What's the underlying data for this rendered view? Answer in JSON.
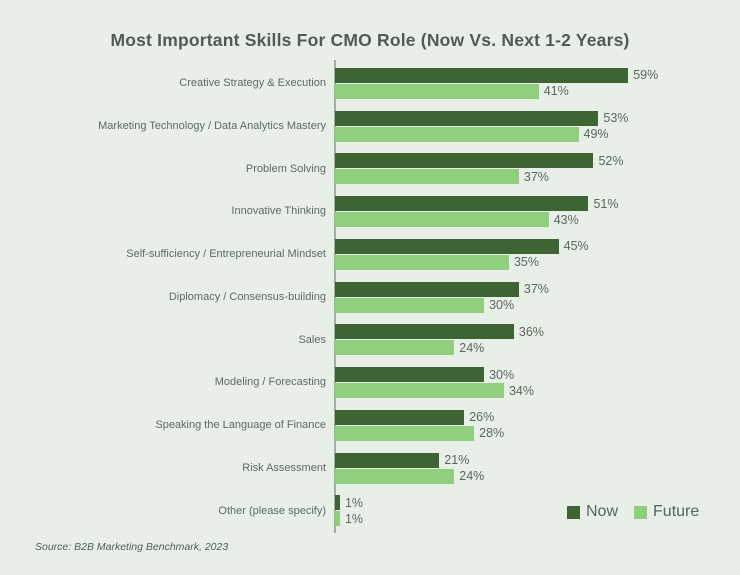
{
  "title": "Most Important Skills For CMO Role (Now Vs. Next 1-2 Years)",
  "source": "Source: B2B Marketing Benchmark, 2023",
  "legend": {
    "now_label": "Now",
    "future_label": "Future",
    "position": "bottom-right"
  },
  "colors": {
    "now": "#3d6432",
    "future": "#90cf7d",
    "background": "#e8efe6",
    "axis": "#a3ada7",
    "title_text": "#4e5b57",
    "label_text": "#5e6a66"
  },
  "chart_data": {
    "type": "bar",
    "orientation": "horizontal",
    "title": "Most Important Skills For CMO Role (Now Vs. Next 1-2 Years)",
    "categories": [
      "Creative Strategy & Execution",
      "Marketing Technology / Data Analytics Mastery",
      "Problem Solving",
      "Innovative Thinking",
      "Self-sufficiency / Entrepreneurial Mindset",
      "Diplomacy / Consensus-building",
      "Sales",
      "Modeling / Forecasting",
      "Speaking the Language of Finance",
      "Risk Assessment",
      "Other (please specify)"
    ],
    "series": [
      {
        "name": "Now",
        "values": [
          59,
          53,
          52,
          51,
          45,
          37,
          36,
          30,
          26,
          21,
          1
        ]
      },
      {
        "name": "Future",
        "values": [
          41,
          49,
          37,
          43,
          35,
          30,
          24,
          34,
          28,
          24,
          1
        ]
      }
    ],
    "value_suffix": "%",
    "xlim": [
      0,
      100
    ],
    "grid": false,
    "legend_position": "bottom-right"
  }
}
